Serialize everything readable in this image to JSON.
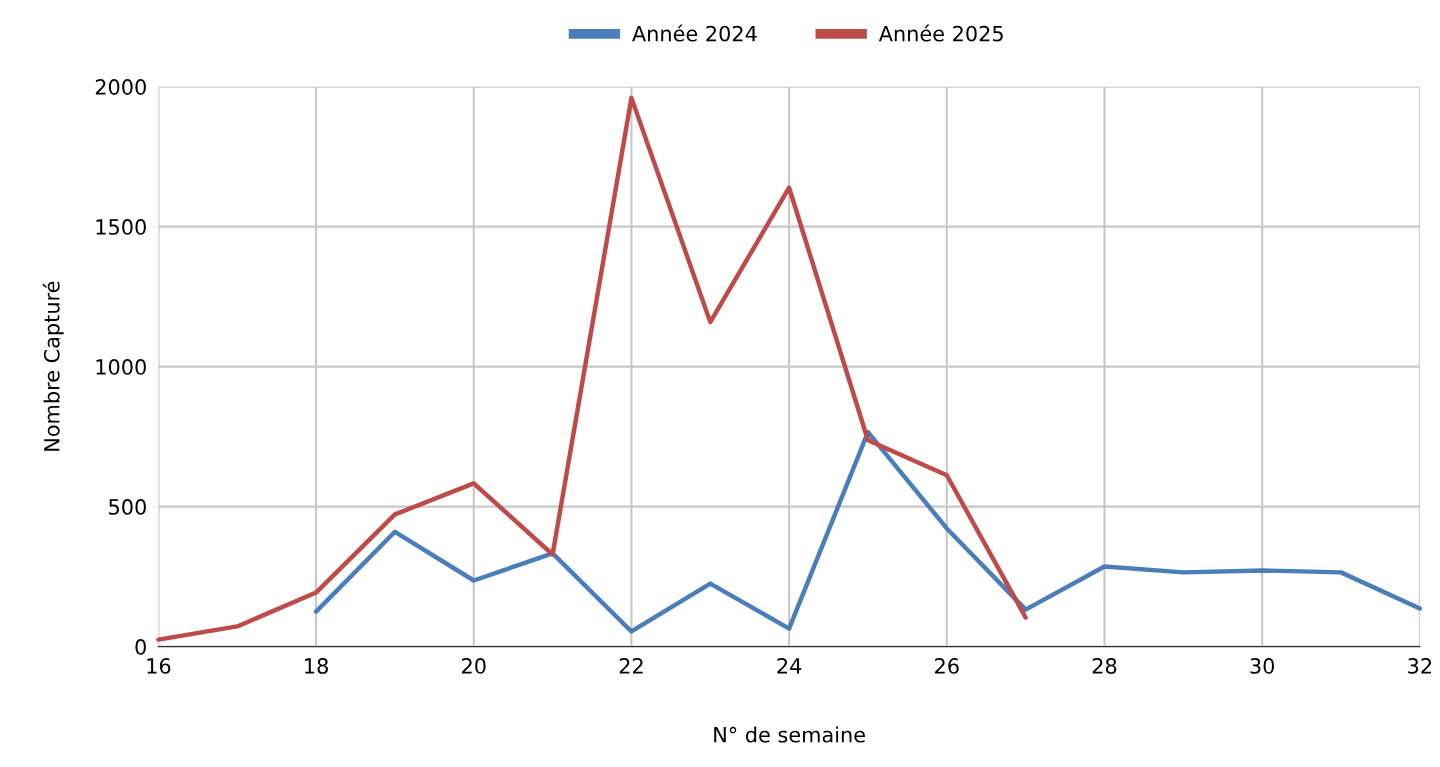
{
  "chart_data": {
    "type": "line",
    "xlabel": "N° de semaine",
    "ylabel": "Nombre Capturé",
    "series": [
      {
        "name": "Année 2024",
        "color": "#4a7ebb",
        "x": [
          18,
          19,
          20,
          21,
          22,
          23,
          24,
          25,
          26,
          27,
          28,
          29,
          30,
          31,
          32
        ],
        "values": [
          125,
          410,
          236,
          333,
          54,
          225,
          64,
          766,
          422,
          132,
          286,
          265,
          272,
          265,
          136
        ]
      },
      {
        "name": "Année 2025",
        "color": "#be4b48",
        "x": [
          16,
          17,
          18,
          19,
          20,
          21,
          22,
          23,
          24,
          25,
          26,
          27
        ],
        "values": [
          25,
          72,
          193,
          472,
          583,
          329,
          1960,
          1159,
          1639,
          737,
          612,
          104
        ]
      }
    ],
    "xlim": [
      16,
      32
    ],
    "xticks": [
      16,
      18,
      20,
      22,
      24,
      26,
      28,
      30,
      32
    ],
    "ylim": [
      0,
      2000
    ],
    "yticks": [
      0,
      500,
      1000,
      1500,
      2000
    ],
    "grid": true,
    "legend": "top",
    "marker": "none",
    "line_style": "solid"
  }
}
